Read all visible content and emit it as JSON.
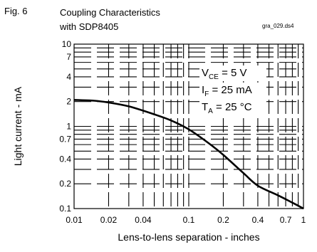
{
  "figure": {
    "label": "Fig. 6",
    "title_line1": "Coupling Characteristics",
    "title_line2": "with SDP8405",
    "code": "gra_029.ds4"
  },
  "chart_data": {
    "type": "line",
    "xlabel": "Lens-to-lens separation - inches",
    "ylabel": "Light  current - mA",
    "xscale": "log",
    "yscale": "log",
    "xlim": [
      0.01,
      1
    ],
    "ylim": [
      0.1,
      10
    ],
    "grid": true,
    "x_ticks": [
      0.01,
      0.02,
      0.04,
      0.1,
      0.2,
      0.4,
      0.7,
      1
    ],
    "x_tick_labels": [
      "0.01",
      "0.02",
      "0.04",
      "0.1",
      "0.2",
      "0.4",
      "0.7",
      "1"
    ],
    "y_ticks": [
      0.1,
      0.2,
      0.4,
      0.7,
      1,
      2,
      4,
      7,
      10
    ],
    "y_tick_labels": [
      "0.1",
      "0.2",
      "0.4",
      "0.7",
      "1",
      "2",
      "4",
      "7",
      "10"
    ],
    "annotations": [
      {
        "main": "V",
        "sub": "CE",
        "rest": " = 5 V"
      },
      {
        "main": "I",
        "sub": "F",
        "rest": " = 25 mA"
      },
      {
        "main": "T",
        "sub": "A",
        "rest": " = 25 °C"
      }
    ],
    "series": [
      {
        "x": [
          0.01,
          0.015,
          0.02,
          0.03,
          0.05,
          0.07,
          0.1,
          0.15,
          0.2,
          0.3,
          0.4,
          0.6,
          0.8,
          1.0
        ],
        "y": [
          2.1,
          2.05,
          1.95,
          1.75,
          1.4,
          1.18,
          0.92,
          0.62,
          0.45,
          0.27,
          0.19,
          0.145,
          0.118,
          0.1
        ]
      }
    ]
  }
}
